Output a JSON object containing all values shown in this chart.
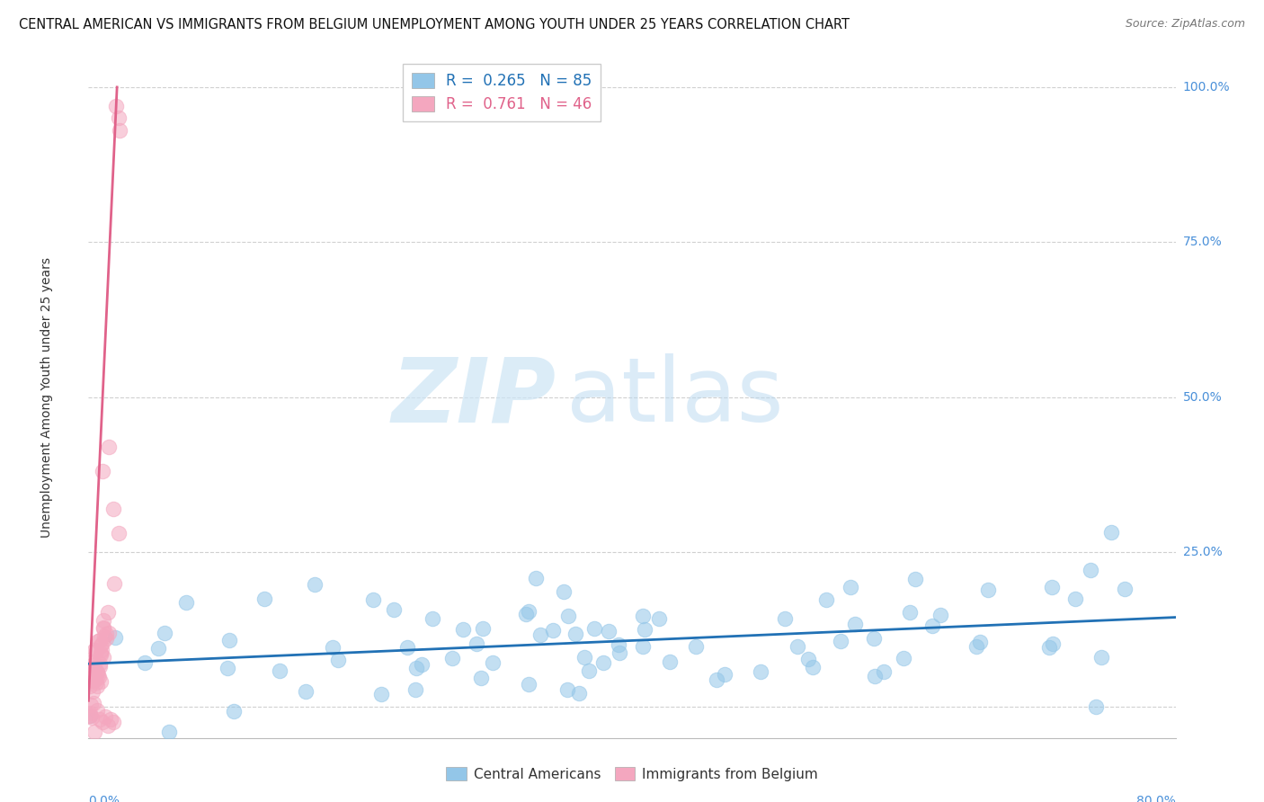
{
  "title": "CENTRAL AMERICAN VS IMMIGRANTS FROM BELGIUM UNEMPLOYMENT AMONG YOUTH UNDER 25 YEARS CORRELATION CHART",
  "source": "Source: ZipAtlas.com",
  "ylabel": "Unemployment Among Youth under 25 years",
  "xlim": [
    0.0,
    0.8
  ],
  "ylim": [
    -0.05,
    1.05
  ],
  "blue_R": 0.265,
  "blue_N": 85,
  "pink_R": 0.761,
  "pink_N": 46,
  "blue_color": "#93c6e8",
  "pink_color": "#f4a7bf",
  "blue_line_color": "#2171b5",
  "pink_line_color": "#e0628a",
  "legend_label_blue": "Central Americans",
  "legend_label_pink": "Immigrants from Belgium",
  "watermark_text": "ZIP",
  "watermark_text2": "atlas",
  "background_color": "#ffffff",
  "title_fontsize": 10.5,
  "source_fontsize": 9,
  "right_axis_color": "#4a90d9"
}
